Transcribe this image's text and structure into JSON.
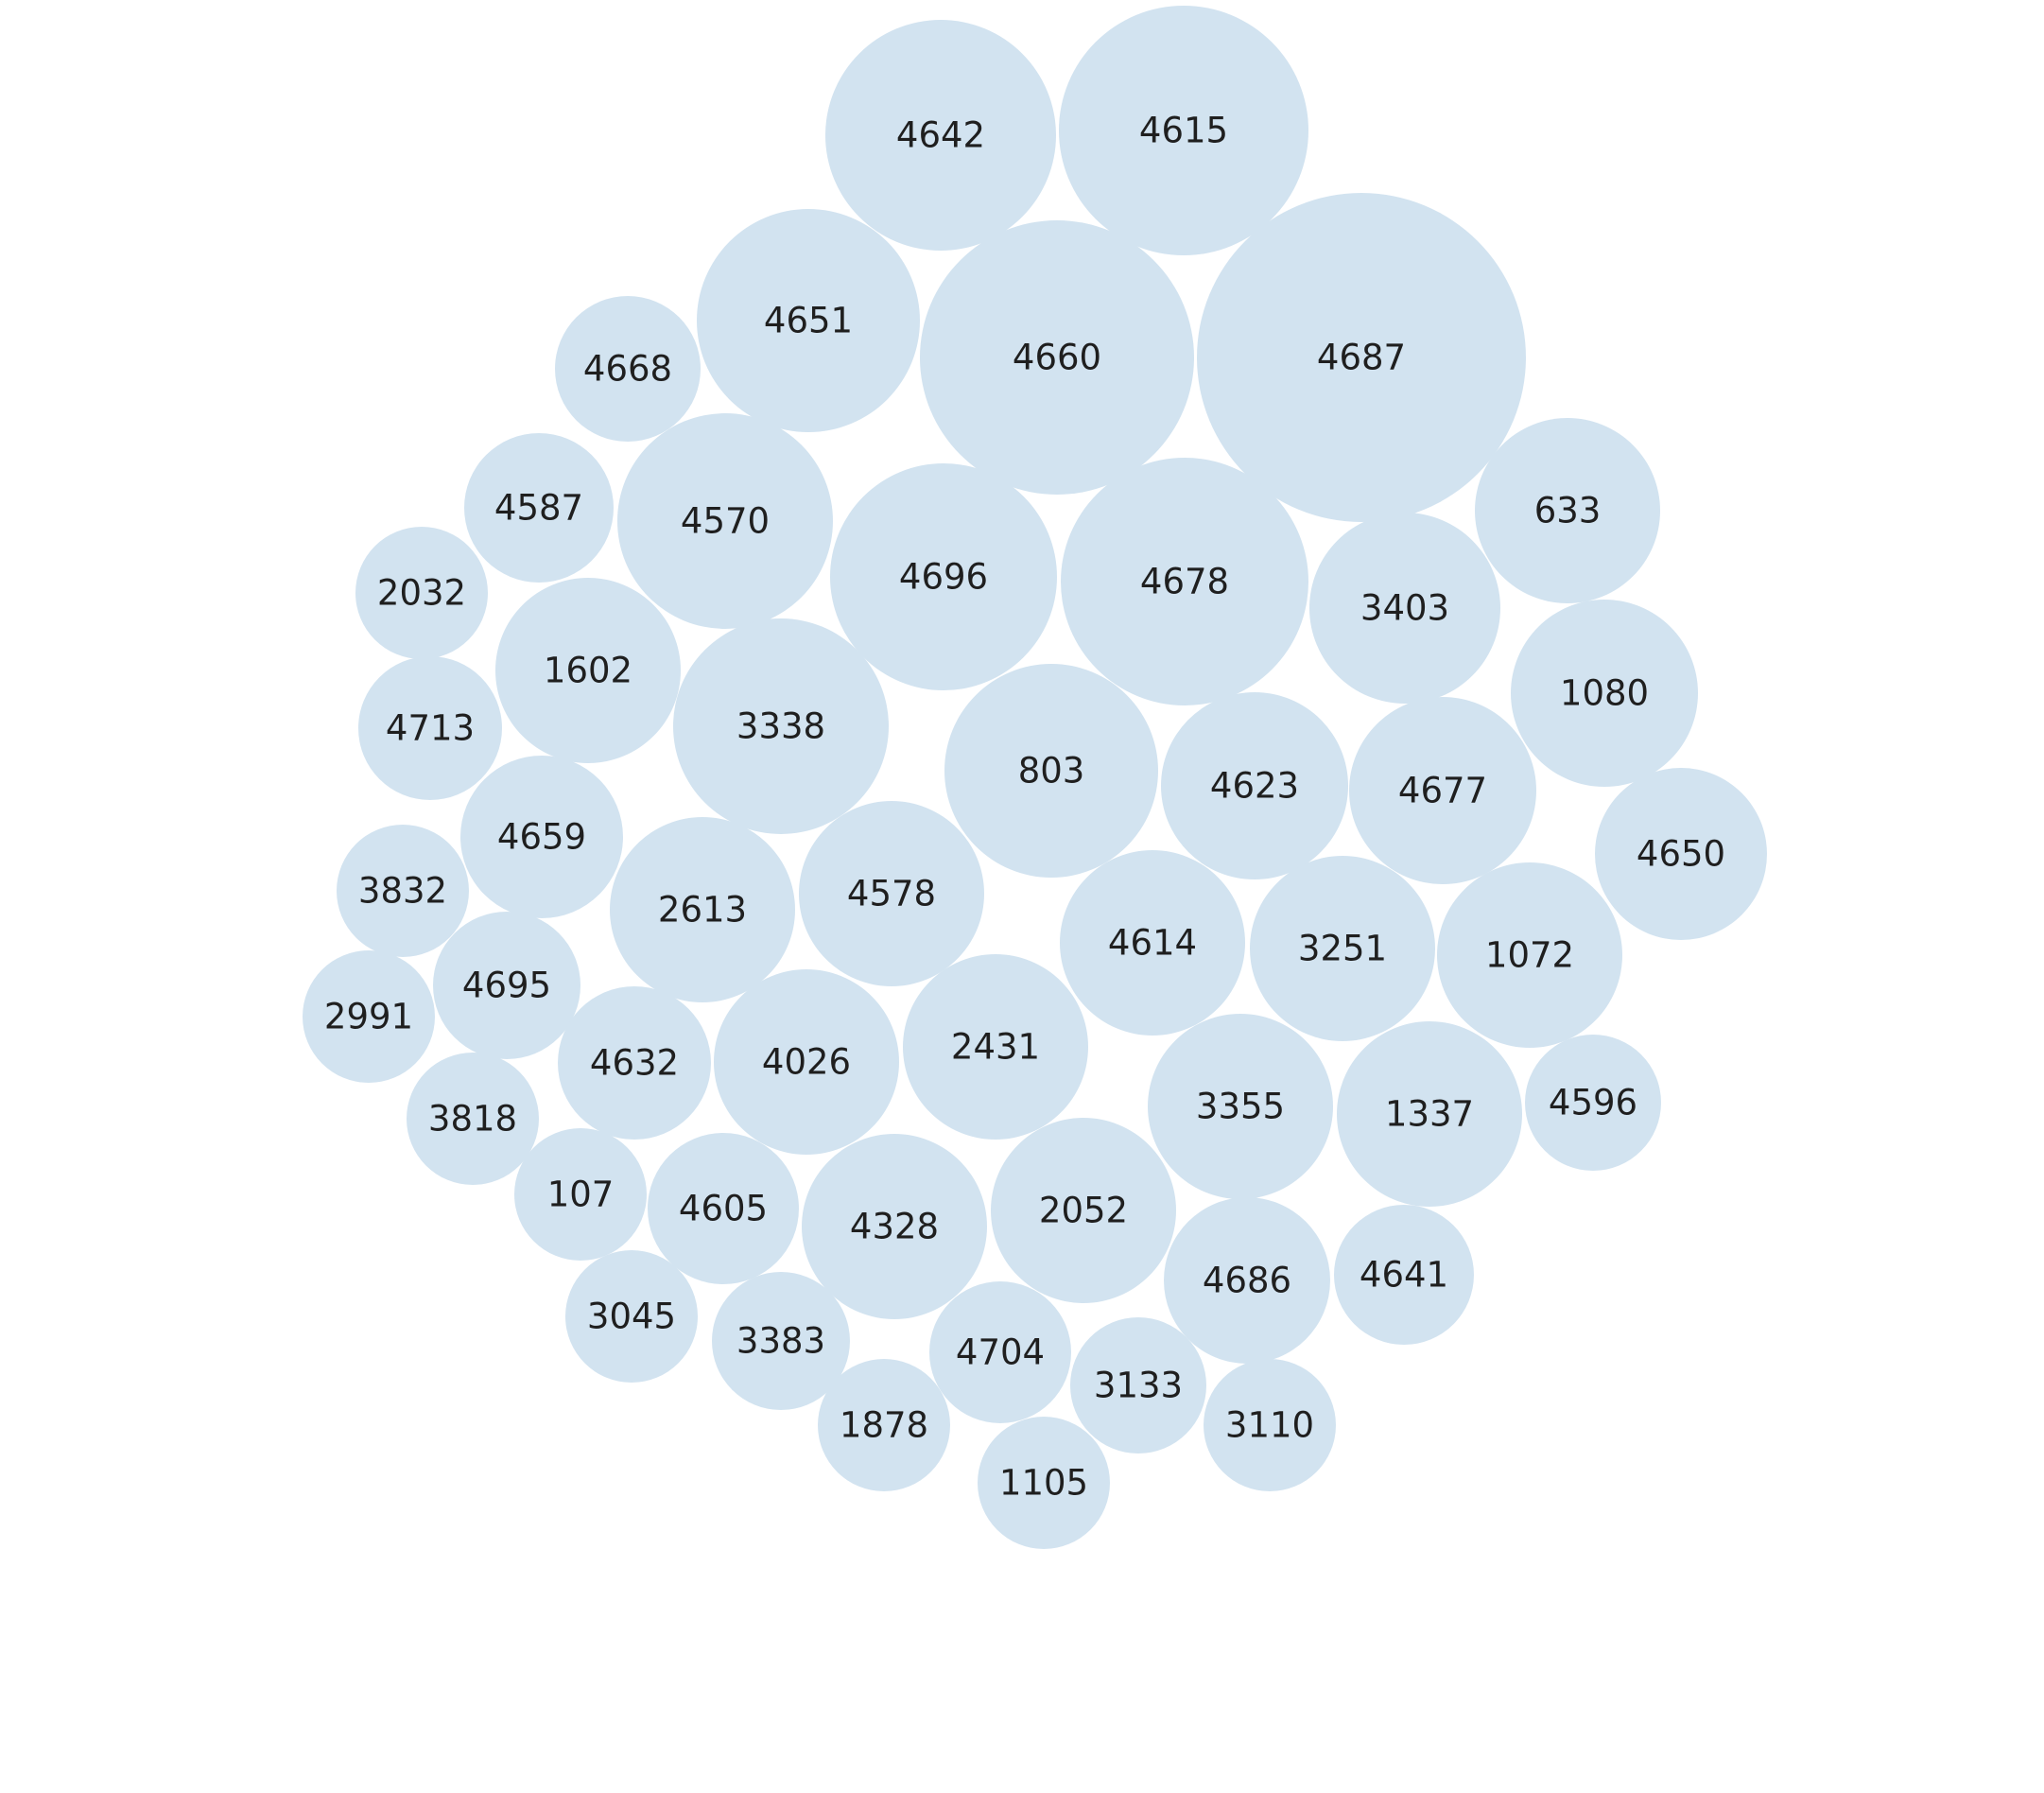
{
  "colors": {
    "background": "#ffffff",
    "bubble_fill": "#d2e3f0",
    "label": "#1f1f1f"
  },
  "chart_data": {
    "type": "bubble",
    "title": "",
    "xlabel": "",
    "ylabel": "",
    "legend": "none",
    "grid": false,
    "bubbles": [
      {
        "label": "4642"
      },
      {
        "label": "4615"
      },
      {
        "label": "4651"
      },
      {
        "label": "4660"
      },
      {
        "label": "4687"
      },
      {
        "label": "4668"
      },
      {
        "label": "4587"
      },
      {
        "label": "4570"
      },
      {
        "label": "633"
      },
      {
        "label": "4696"
      },
      {
        "label": "4678"
      },
      {
        "label": "2032"
      },
      {
        "label": "3403"
      },
      {
        "label": "1602"
      },
      {
        "label": "1080"
      },
      {
        "label": "4713"
      },
      {
        "label": "3338"
      },
      {
        "label": "803"
      },
      {
        "label": "4623"
      },
      {
        "label": "4677"
      },
      {
        "label": "4659"
      },
      {
        "label": "4650"
      },
      {
        "label": "3832"
      },
      {
        "label": "2613"
      },
      {
        "label": "4578"
      },
      {
        "label": "4614"
      },
      {
        "label": "3251"
      },
      {
        "label": "1072"
      },
      {
        "label": "4695"
      },
      {
        "label": "2991"
      },
      {
        "label": "4632"
      },
      {
        "label": "4026"
      },
      {
        "label": "2431"
      },
      {
        "label": "3355"
      },
      {
        "label": "1337"
      },
      {
        "label": "4596"
      },
      {
        "label": "3818"
      },
      {
        "label": "107"
      },
      {
        "label": "4605"
      },
      {
        "label": "4328"
      },
      {
        "label": "2052"
      },
      {
        "label": "4686"
      },
      {
        "label": "4641"
      },
      {
        "label": "3045"
      },
      {
        "label": "3383"
      },
      {
        "label": "4704"
      },
      {
        "label": "3133"
      },
      {
        "label": "3110"
      },
      {
        "label": "1878"
      },
      {
        "label": "1105"
      }
    ]
  }
}
